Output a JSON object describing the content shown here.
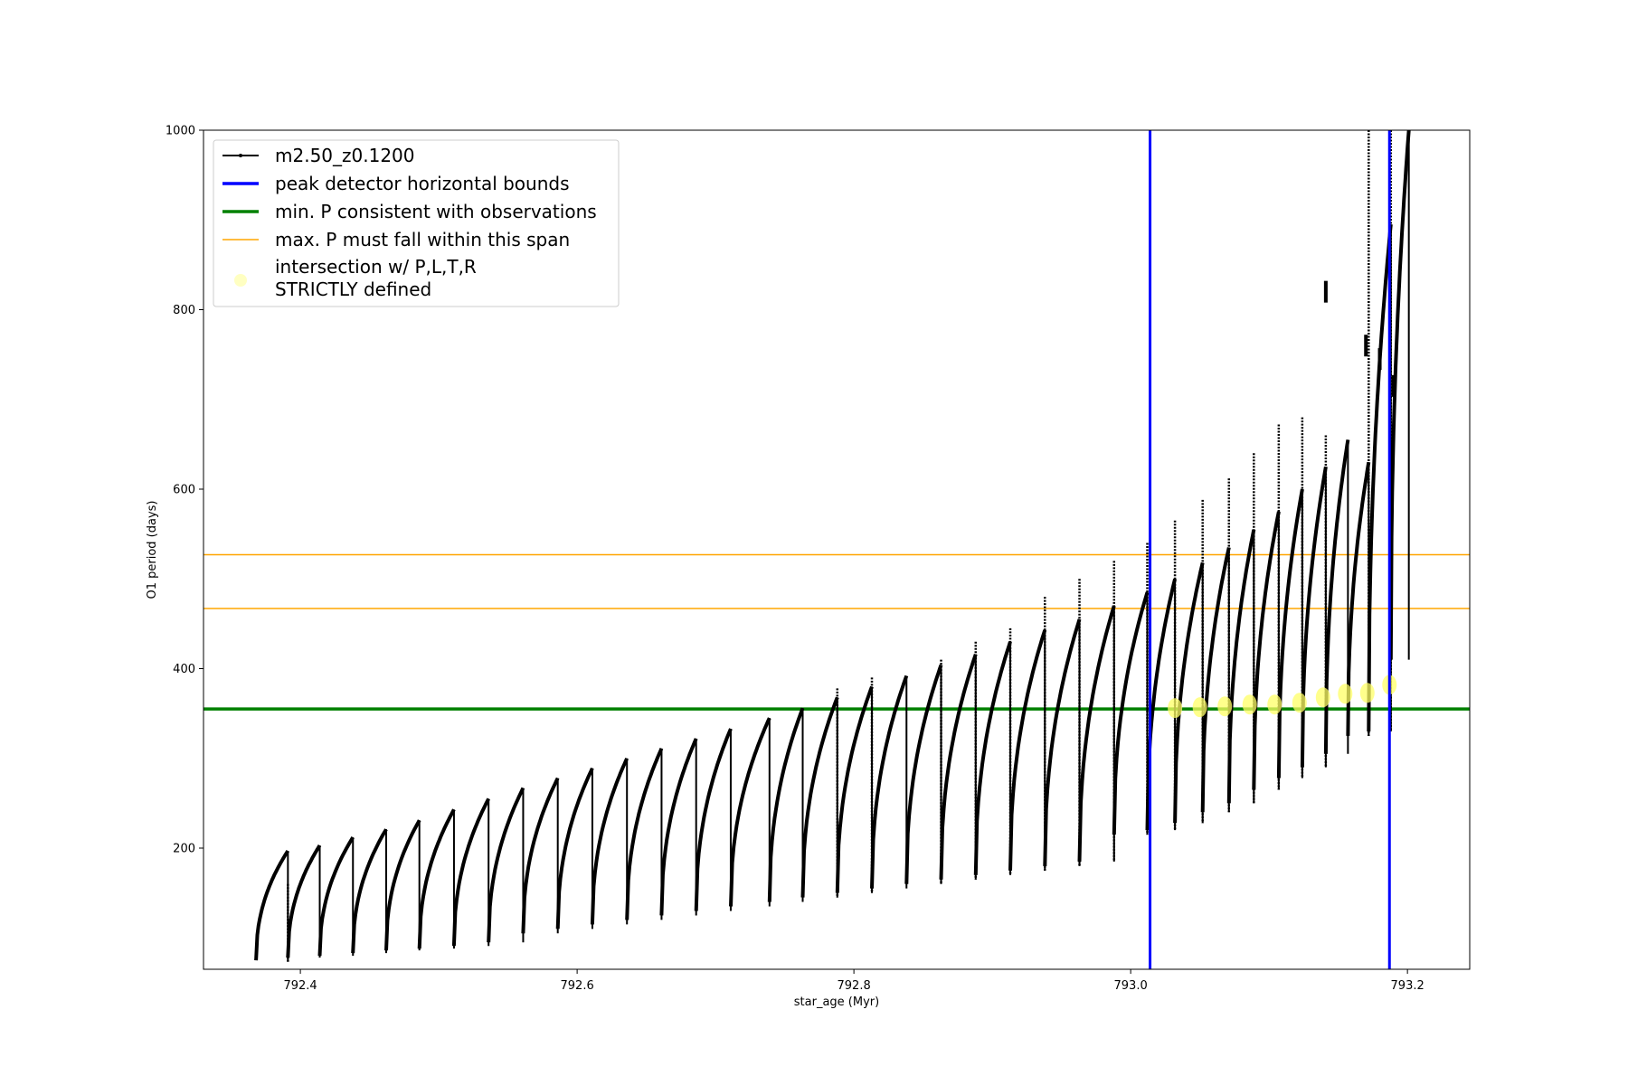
{
  "chart_data": {
    "type": "line",
    "xlabel": "star_age (Myr)",
    "ylabel": "O1 period (days)",
    "xlim": [
      792.33,
      793.245
    ],
    "ylim": [
      65,
      1000
    ],
    "x_ticks": [
      792.4,
      792.6,
      792.8,
      793.0,
      793.2
    ],
    "x_tick_labels": [
      "792.4",
      "792.6",
      "792.8",
      "793.0",
      "793.2"
    ],
    "y_ticks": [
      200,
      400,
      600,
      800,
      1000
    ],
    "y_tick_labels": [
      "200",
      "400",
      "600",
      "800",
      "1000"
    ],
    "grid": false,
    "legend_position": "upper-left",
    "legend": [
      {
        "label": "m2.50_z0.1200",
        "kind": "line-marker",
        "color": "#000000"
      },
      {
        "label": "peak detector horizontal bounds",
        "kind": "line",
        "color": "#0000ff"
      },
      {
        "label": "min. P consistent with observations",
        "kind": "line",
        "color": "#008000"
      },
      {
        "label": "max. P must fall within this span",
        "kind": "line",
        "color": "#ffa500"
      },
      {
        "label_lines": [
          "intersection w/ P,L,T,R",
          "STRICTLY defined"
        ],
        "kind": "marker",
        "color": "#ffff66"
      }
    ],
    "series": [
      {
        "name": "m2.50_z0.1200",
        "color": "#000000",
        "cycles": [
          {
            "start": 792.368,
            "end": 792.391,
            "low": 75,
            "high": 197,
            "spike_low": 72,
            "spike_high": 160
          },
          {
            "start": 792.391,
            "end": 792.414,
            "low": 78,
            "high": 203
          },
          {
            "start": 792.414,
            "end": 792.438,
            "low": 80,
            "high": 212
          },
          {
            "start": 792.438,
            "end": 792.462,
            "low": 83,
            "high": 221
          },
          {
            "start": 792.462,
            "end": 792.486,
            "low": 86,
            "high": 231
          },
          {
            "start": 792.486,
            "end": 792.511,
            "low": 88,
            "high": 243
          },
          {
            "start": 792.511,
            "end": 792.536,
            "low": 91,
            "high": 255
          },
          {
            "start": 792.536,
            "end": 792.561,
            "low": 95,
            "high": 267
          },
          {
            "start": 792.561,
            "end": 792.586,
            "low": 105,
            "high": 278
          },
          {
            "start": 792.586,
            "end": 792.611,
            "low": 110,
            "high": 289
          },
          {
            "start": 792.611,
            "end": 792.636,
            "low": 115,
            "high": 300
          },
          {
            "start": 792.636,
            "end": 792.661,
            "low": 120,
            "high": 311
          },
          {
            "start": 792.661,
            "end": 792.686,
            "low": 125,
            "high": 322
          },
          {
            "start": 792.686,
            "end": 792.711,
            "low": 130,
            "high": 333
          },
          {
            "start": 792.711,
            "end": 792.739,
            "low": 135,
            "high": 345
          },
          {
            "start": 792.739,
            "end": 792.763,
            "low": 140,
            "high": 356
          },
          {
            "start": 792.763,
            "end": 792.788,
            "low": 145,
            "high": 368,
            "spike_high": 378
          },
          {
            "start": 792.788,
            "end": 792.813,
            "low": 150,
            "high": 380,
            "spike_high": 390
          },
          {
            "start": 792.813,
            "end": 792.838,
            "low": 155,
            "high": 392
          },
          {
            "start": 792.838,
            "end": 792.863,
            "low": 160,
            "high": 404,
            "spike_high": 410
          },
          {
            "start": 792.863,
            "end": 792.888,
            "low": 165,
            "high": 416,
            "spike_high": 430
          },
          {
            "start": 792.888,
            "end": 792.913,
            "low": 170,
            "high": 430,
            "spike_high": 445
          },
          {
            "start": 792.913,
            "end": 792.938,
            "low": 175,
            "high": 443,
            "spike_high": 480
          },
          {
            "start": 792.938,
            "end": 792.963,
            "low": 180,
            "high": 455,
            "spike_high": 500
          },
          {
            "start": 792.963,
            "end": 792.988,
            "low": 185,
            "high": 470,
            "spike_high": 520
          },
          {
            "start": 792.988,
            "end": 793.012,
            "low": 215,
            "high": 485,
            "spike_high": 540
          },
          {
            "start": 793.012,
            "end": 793.032,
            "low": 220,
            "high": 500,
            "spike_high": 565
          },
          {
            "start": 793.032,
            "end": 793.052,
            "low": 228,
            "high": 518,
            "spike_high": 588
          },
          {
            "start": 793.052,
            "end": 793.071,
            "low": 240,
            "high": 535,
            "spike_high": 612
          },
          {
            "start": 793.071,
            "end": 793.089,
            "low": 250,
            "high": 555,
            "spike_high": 640
          },
          {
            "start": 793.089,
            "end": 793.107,
            "low": 265,
            "high": 575,
            "spike_high": 672
          },
          {
            "start": 793.107,
            "end": 793.124,
            "low": 278,
            "high": 600,
            "spike_high": 680
          },
          {
            "start": 793.124,
            "end": 793.141,
            "low": 290,
            "high": 625,
            "spike_high": 660
          },
          {
            "start": 793.141,
            "end": 793.157,
            "low": 305,
            "high": 655
          },
          {
            "start": 793.157,
            "end": 793.172,
            "low": 325,
            "high": 630,
            "spike_high": 1000
          },
          {
            "start": 793.172,
            "end": 793.188,
            "low": 330,
            "high": 895,
            "spike_high": 1000
          },
          {
            "start": 793.188,
            "end": 793.201,
            "low": 410,
            "high": 1000
          }
        ],
        "isolated_points": [
          {
            "x": 793.141,
            "y": 820
          },
          {
            "x": 793.17,
            "y": 760
          },
          {
            "x": 793.18,
            "y": 745
          },
          {
            "x": 793.19,
            "y": 715
          }
        ]
      }
    ],
    "vertical_lines": [
      {
        "name": "peak detector horizontal bounds",
        "x": 793.014,
        "color": "#0000ff"
      },
      {
        "name": "peak detector horizontal bounds",
        "x": 793.187,
        "color": "#0000ff"
      }
    ],
    "horizontal_lines": [
      {
        "name": "min. P consistent with observations",
        "y": 355,
        "color": "#008000"
      },
      {
        "name": "max. P must fall within this span",
        "y": 467,
        "color": "#ffa500"
      },
      {
        "name": "max. P must fall within this span",
        "y": 527,
        "color": "#ffa500"
      }
    ],
    "highlight_points": {
      "name": "intersection w/ P,L,T,R STRICTLY defined",
      "color": "#ffff66",
      "points": [
        {
          "x": 793.032,
          "y": 356
        },
        {
          "x": 793.05,
          "y": 357
        },
        {
          "x": 793.068,
          "y": 358
        },
        {
          "x": 793.086,
          "y": 360
        },
        {
          "x": 793.104,
          "y": 360
        },
        {
          "x": 793.122,
          "y": 362
        },
        {
          "x": 793.139,
          "y": 368
        },
        {
          "x": 793.155,
          "y": 372
        },
        {
          "x": 793.171,
          "y": 373
        },
        {
          "x": 793.187,
          "y": 382
        }
      ]
    }
  }
}
